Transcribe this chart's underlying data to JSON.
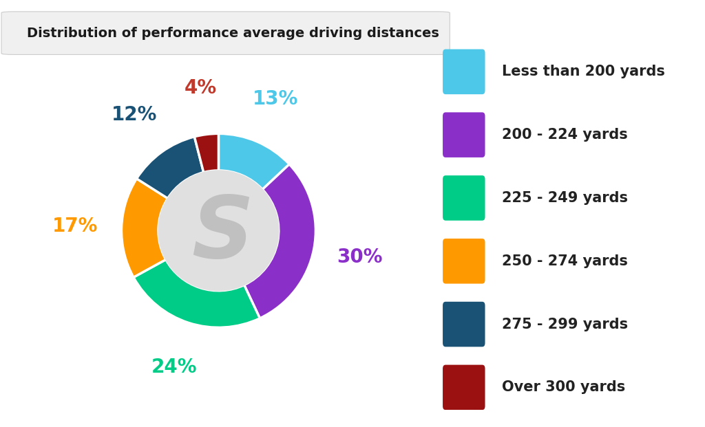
{
  "title": "Distribution of performance average driving distances",
  "segments": [
    {
      "label": "Less than 200 yards",
      "value": 13,
      "color": "#4DC8E8",
      "text_color": "#4DC8E8",
      "pct": "13%"
    },
    {
      "label": "200 - 224 yards",
      "value": 30,
      "color": "#8B2FC9",
      "text_color": "#8B2FC9",
      "pct": "30%"
    },
    {
      "label": "225 - 249 yards",
      "value": 24,
      "color": "#00CC88",
      "text_color": "#00CC88",
      "pct": "24%"
    },
    {
      "label": "250 - 274 yards",
      "value": 17,
      "color": "#FF9900",
      "text_color": "#FF9900",
      "pct": "17%"
    },
    {
      "label": "275 - 299 yards",
      "value": 12,
      "color": "#1A5276",
      "text_color": "#1A5276",
      "pct": "12%"
    },
    {
      "label": "Over 300 yards",
      "value": 4,
      "color": "#9B1010",
      "text_color": "#C0392B",
      "pct": "4%"
    }
  ],
  "background_color": "#FFFFFF",
  "inner_color": "#E0E0E0",
  "title_fontsize": 14,
  "label_fontsize": 20,
  "legend_fontsize": 15,
  "donut_width": 0.38,
  "start_angle": 90
}
